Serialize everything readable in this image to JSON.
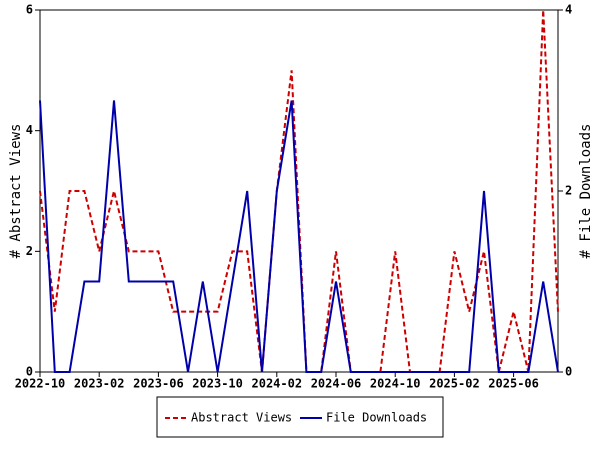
{
  "chart_data": {
    "type": "line",
    "categories": [
      "2022-10",
      null,
      null,
      null,
      "2023-02",
      null,
      null,
      null,
      "2023-06",
      null,
      null,
      null,
      "2023-10",
      null,
      null,
      null,
      "2024-02",
      null,
      null,
      null,
      "2024-06",
      null,
      null,
      null,
      "2024-10",
      null,
      null,
      null,
      "2025-02",
      null,
      null,
      null,
      "2025-06",
      null,
      null,
      null
    ],
    "series": [
      {
        "name": "Abstract Views",
        "color": "#cc0000",
        "dashed": true,
        "axis": "y",
        "values": [
          3,
          1,
          3,
          3,
          2,
          3,
          2,
          2,
          2,
          1,
          1,
          1,
          1,
          2,
          2,
          0,
          3,
          5,
          0,
          0,
          2,
          0,
          0,
          0,
          2,
          0,
          0,
          0,
          2,
          1,
          2,
          0,
          1,
          0,
          6,
          1
        ]
      },
      {
        "name": "File Downloads",
        "color": "#0000aa",
        "dashed": false,
        "axis": "y2",
        "values": [
          3,
          0,
          0,
          1,
          1,
          3,
          1,
          1,
          1,
          1,
          0,
          1,
          0,
          1,
          2,
          0,
          2,
          3,
          0,
          0,
          1,
          0,
          0,
          0,
          0,
          0,
          0,
          0,
          0,
          0,
          2,
          0,
          0,
          0,
          1,
          0
        ]
      }
    ],
    "ylabel": "# Abstract Views",
    "y2label": "# File Downloads",
    "ylim": [
      0,
      6
    ],
    "yticks": [
      0,
      2,
      4,
      6
    ],
    "y2lim": [
      0,
      4
    ],
    "y2ticks": [
      0,
      2,
      4
    ],
    "legend": "bottom"
  }
}
